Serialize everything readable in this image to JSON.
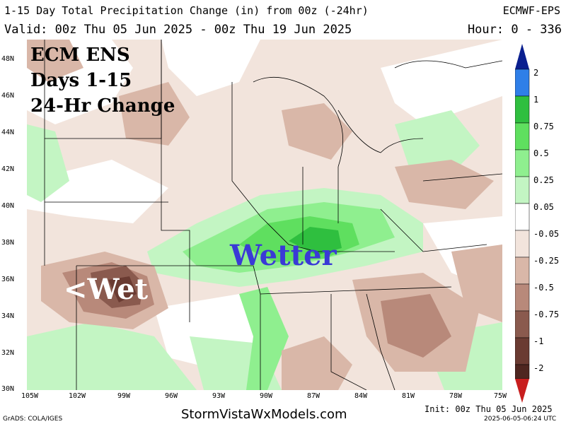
{
  "header": {
    "title": "1-15 Day Total Precipitation Change (in) from 00z (-24hr)",
    "model": "ECMWF-EPS",
    "valid": "Valid: 00z Thu 05 Jun 2025 - 00z Thu 19 Jun 2025",
    "hours": "Hour: 0 - 336"
  },
  "overlay": {
    "line1": "ECM ENS",
    "line2": "Days 1-15",
    "line3": "24-Hr Change",
    "wetter": "Wetter",
    "wet": "<Wet"
  },
  "axes": {
    "lat_labels": [
      "48N",
      "46N",
      "44N",
      "42N",
      "40N",
      "38N",
      "36N",
      "34N",
      "32N",
      "30N"
    ],
    "lon_labels": [
      "105W",
      "102W",
      "99W",
      "96W",
      "93W",
      "90W",
      "87W",
      "84W",
      "81W",
      "78W",
      "75W"
    ]
  },
  "legend": {
    "labels": [
      "2",
      "1",
      "0.75",
      "0.5",
      "0.25",
      "0.05",
      "-0.05",
      "-0.25",
      "-0.5",
      "-0.75",
      "-1",
      "-2"
    ],
    "colors": [
      "#0a1f8f",
      "#2f7fe8",
      "#2fbf3f",
      "#5fdf5f",
      "#8fef8f",
      "#c3f5c3",
      "#ffffff",
      "#f2e4dc",
      "#d9b7a8",
      "#b8897a",
      "#8a5a4e",
      "#6a3b32",
      "#4e2620",
      "#c81e1e"
    ]
  },
  "footer": {
    "left": "GrADS: COLA/IGES",
    "center": "StormVistaWxModels.com",
    "init": "Init: 00z Thu 05 Jun 2025",
    "stamp": "2025-06-05-06:24 UTC"
  }
}
